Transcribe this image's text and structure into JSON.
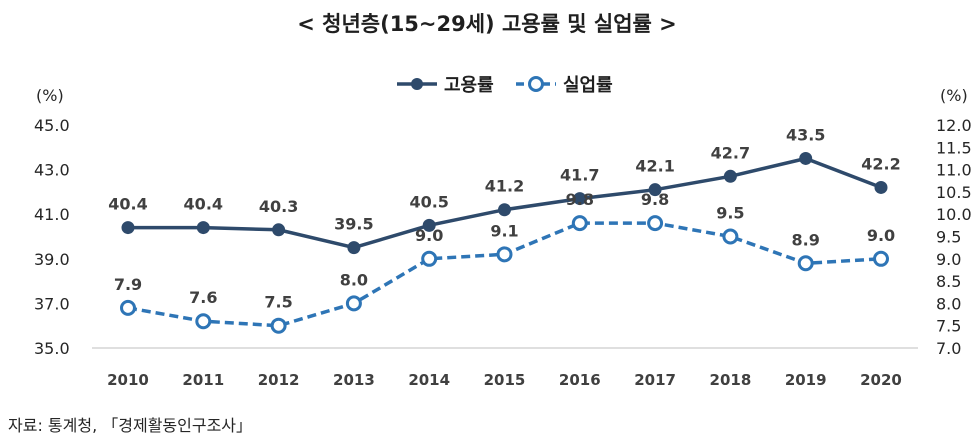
{
  "chart_data": {
    "type": "line",
    "title": "< 청년층(15~29세) 고용률 및 실업률 >",
    "categories": [
      "2010",
      "2011",
      "2012",
      "2013",
      "2014",
      "2015",
      "2016",
      "2017",
      "2018",
      "2019",
      "2020"
    ],
    "left_axis": {
      "unit": "(%)",
      "ylim": [
        35.0,
        45.0
      ],
      "ticks": [
        "45.0",
        "43.0",
        "41.0",
        "39.0",
        "37.0",
        "35.0"
      ]
    },
    "right_axis": {
      "unit": "(%)",
      "ylim": [
        7.0,
        12.0
      ],
      "ticks": [
        "12.0",
        "11.5",
        "11.0",
        "10.5",
        "10.0",
        "9.5",
        "9.0",
        "8.5",
        "8.0",
        "7.5",
        "7.0"
      ]
    },
    "series": [
      {
        "name": "고용률",
        "axis": "left",
        "style": "solid",
        "color": "#2e4a6b",
        "values": [
          40.4,
          40.4,
          40.3,
          39.5,
          40.5,
          41.2,
          41.7,
          42.1,
          42.7,
          43.5,
          42.2
        ],
        "labels": [
          "40.4",
          "40.4",
          "40.3",
          "39.5",
          "40.5",
          "41.2",
          "41.7",
          "42.1",
          "42.7",
          "43.5",
          "42.2"
        ]
      },
      {
        "name": "실업률",
        "axis": "right",
        "style": "dashed",
        "color": "#2e75b6",
        "values": [
          7.9,
          7.6,
          7.5,
          8.0,
          9.0,
          9.1,
          9.8,
          9.8,
          9.5,
          8.9,
          9.0
        ],
        "labels": [
          "7.9",
          "7.6",
          "7.5",
          "8.0",
          "9.0",
          "9.1",
          "9.8",
          "9.8",
          "9.5",
          "8.9",
          "9.0"
        ]
      }
    ],
    "legend_position": "top-center",
    "grid": false
  },
  "source": "자료: 통계청, 「경제활동인구조사」"
}
